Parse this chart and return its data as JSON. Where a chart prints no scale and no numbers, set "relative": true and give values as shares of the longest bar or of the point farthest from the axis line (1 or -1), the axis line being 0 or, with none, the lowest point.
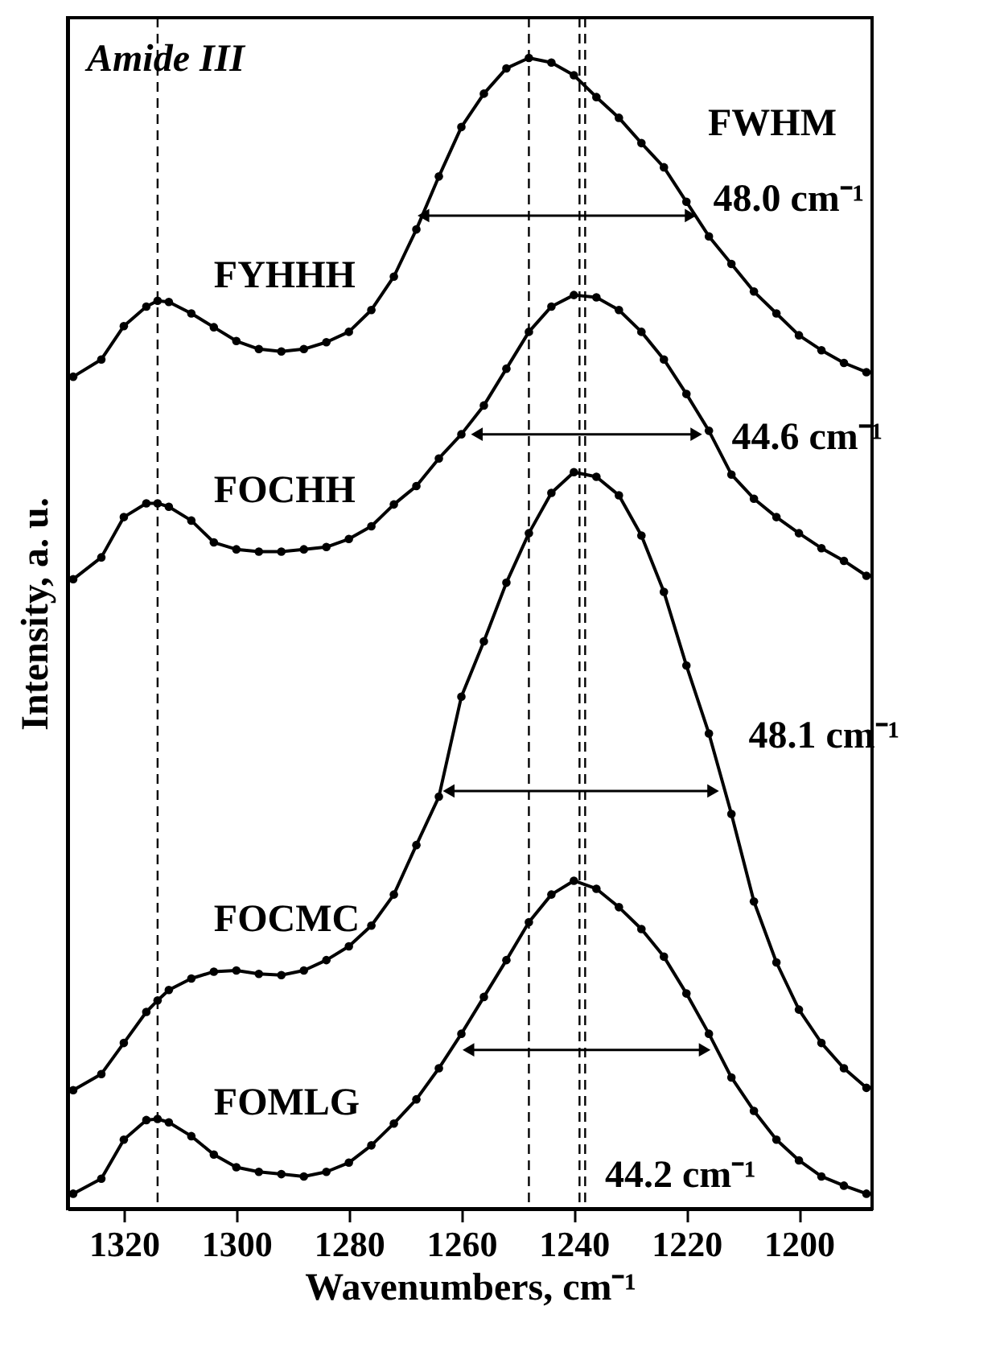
{
  "chart_data": {
    "type": "line",
    "relative": true,
    "xlabel": "Wavenumbers, cm⁻¹",
    "ylabel": "Intensity, a. u.",
    "x": [
      1329,
      1324,
      1320,
      1316,
      1314,
      1312,
      1308,
      1304,
      1300,
      1296,
      1292,
      1288,
      1284,
      1280,
      1276,
      1272,
      1268,
      1264,
      1260,
      1256,
      1252,
      1248,
      1244,
      1240,
      1236,
      1232,
      1228,
      1224,
      1220,
      1216,
      1212,
      1208,
      1204,
      1200,
      1196,
      1192,
      1188
    ],
    "xlim": [
      1330,
      1187
    ],
    "xticks": [
      1320,
      1300,
      1280,
      1260,
      1240,
      1220,
      1200
    ],
    "series": [
      {
        "name": "FYHHH",
        "color": "#000000",
        "values": [
          0.723,
          0.738,
          0.767,
          0.784,
          0.789,
          0.788,
          0.778,
          0.766,
          0.754,
          0.747,
          0.745,
          0.747,
          0.753,
          0.762,
          0.781,
          0.81,
          0.851,
          0.897,
          0.94,
          0.969,
          0.991,
          1.0,
          0.996,
          0.985,
          0.966,
          0.948,
          0.926,
          0.905,
          0.875,
          0.845,
          0.821,
          0.797,
          0.778,
          0.759,
          0.746,
          0.735,
          0.727
        ]
      },
      {
        "name": "FOCHH",
        "color": "#000000",
        "values": [
          0.547,
          0.566,
          0.601,
          0.613,
          0.613,
          0.61,
          0.598,
          0.579,
          0.573,
          0.571,
          0.571,
          0.573,
          0.575,
          0.582,
          0.593,
          0.612,
          0.628,
          0.652,
          0.673,
          0.698,
          0.73,
          0.762,
          0.784,
          0.794,
          0.792,
          0.781,
          0.762,
          0.738,
          0.708,
          0.676,
          0.638,
          0.617,
          0.601,
          0.587,
          0.574,
          0.563,
          0.55
        ]
      },
      {
        "name": "FOCMC",
        "color": "#000000",
        "values": [
          0.103,
          0.117,
          0.144,
          0.171,
          0.181,
          0.19,
          0.2,
          0.206,
          0.207,
          0.204,
          0.203,
          0.207,
          0.216,
          0.228,
          0.246,
          0.273,
          0.316,
          0.358,
          0.445,
          0.493,
          0.544,
          0.587,
          0.622,
          0.64,
          0.636,
          0.62,
          0.585,
          0.536,
          0.472,
          0.413,
          0.343,
          0.267,
          0.214,
          0.173,
          0.144,
          0.122,
          0.105
        ]
      },
      {
        "name": "FOMLG",
        "color": "#000000",
        "values": [
          0.013,
          0.026,
          0.06,
          0.077,
          0.078,
          0.075,
          0.063,
          0.047,
          0.036,
          0.032,
          0.03,
          0.028,
          0.032,
          0.04,
          0.055,
          0.074,
          0.095,
          0.122,
          0.152,
          0.184,
          0.216,
          0.249,
          0.273,
          0.285,
          0.278,
          0.262,
          0.243,
          0.219,
          0.187,
          0.152,
          0.114,
          0.085,
          0.06,
          0.042,
          0.028,
          0.02,
          0.013
        ]
      }
    ],
    "ref_lines": [
      {
        "axis": "x",
        "value": 1314,
        "color": "#000000",
        "line_style": "dashed"
      },
      {
        "axis": "x",
        "value": 1248,
        "color": "#000000",
        "line_style": "dashed"
      },
      {
        "axis": "x",
        "value": 1239,
        "color": "#000000",
        "line_style": "dashed"
      },
      {
        "axis": "x",
        "value": 1238,
        "color": "#000000",
        "line_style": "dashed"
      }
    ],
    "annotations": [
      "Amide III",
      "FWHM",
      "48.0 cm⁻¹",
      "44.6 cm⁻¹",
      "48.1 cm⁻¹",
      "44.2 cm⁻¹"
    ],
    "marker": "circle",
    "line_style": "solid"
  }
}
